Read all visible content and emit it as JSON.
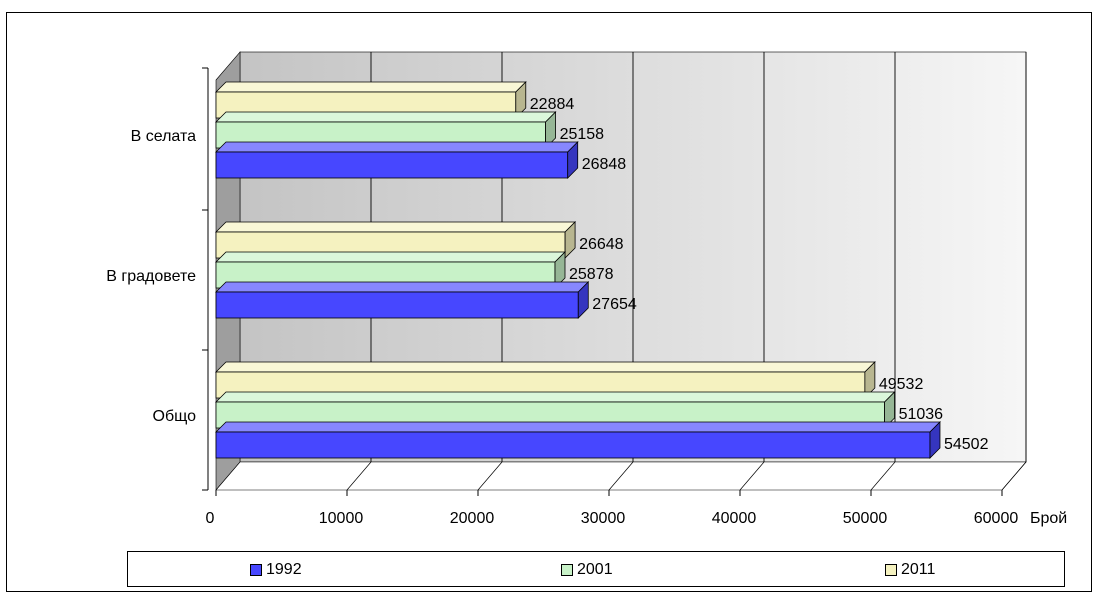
{
  "chart_data": {
    "type": "bar",
    "orientation": "horizontal",
    "style": "3d-clustered",
    "categories": [
      "В селата",
      "В градовете",
      "Общо"
    ],
    "series": [
      {
        "name": "1992",
        "color": "#4747ff",
        "values": [
          26848,
          27654,
          54502
        ]
      },
      {
        "name": "2001",
        "color": "#c8f2c8",
        "values": [
          25158,
          25878,
          51036
        ]
      },
      {
        "name": "2011",
        "color": "#f5f2c0",
        "values": [
          22884,
          26648,
          49532
        ]
      }
    ],
    "data_labels": [
      [
        "26848",
        "25158",
        "22884"
      ],
      [
        "27654",
        "25878",
        "26648"
      ],
      [
        "54502",
        "51036",
        "49532"
      ]
    ],
    "xlabel": "Брой",
    "ylabel": "",
    "xlim": [
      0,
      60000
    ],
    "x_ticks": [
      "0",
      "10000",
      "20000",
      "30000",
      "40000",
      "50000",
      "60000"
    ],
    "grid": true,
    "legend_position": "bottom",
    "legend_labels": [
      "1992",
      "2001",
      "2011"
    ],
    "colors": {
      "wall_dark": "#c4c4c4",
      "wall_light": "#f6f6f6",
      "floor": "#ffffff"
    }
  }
}
